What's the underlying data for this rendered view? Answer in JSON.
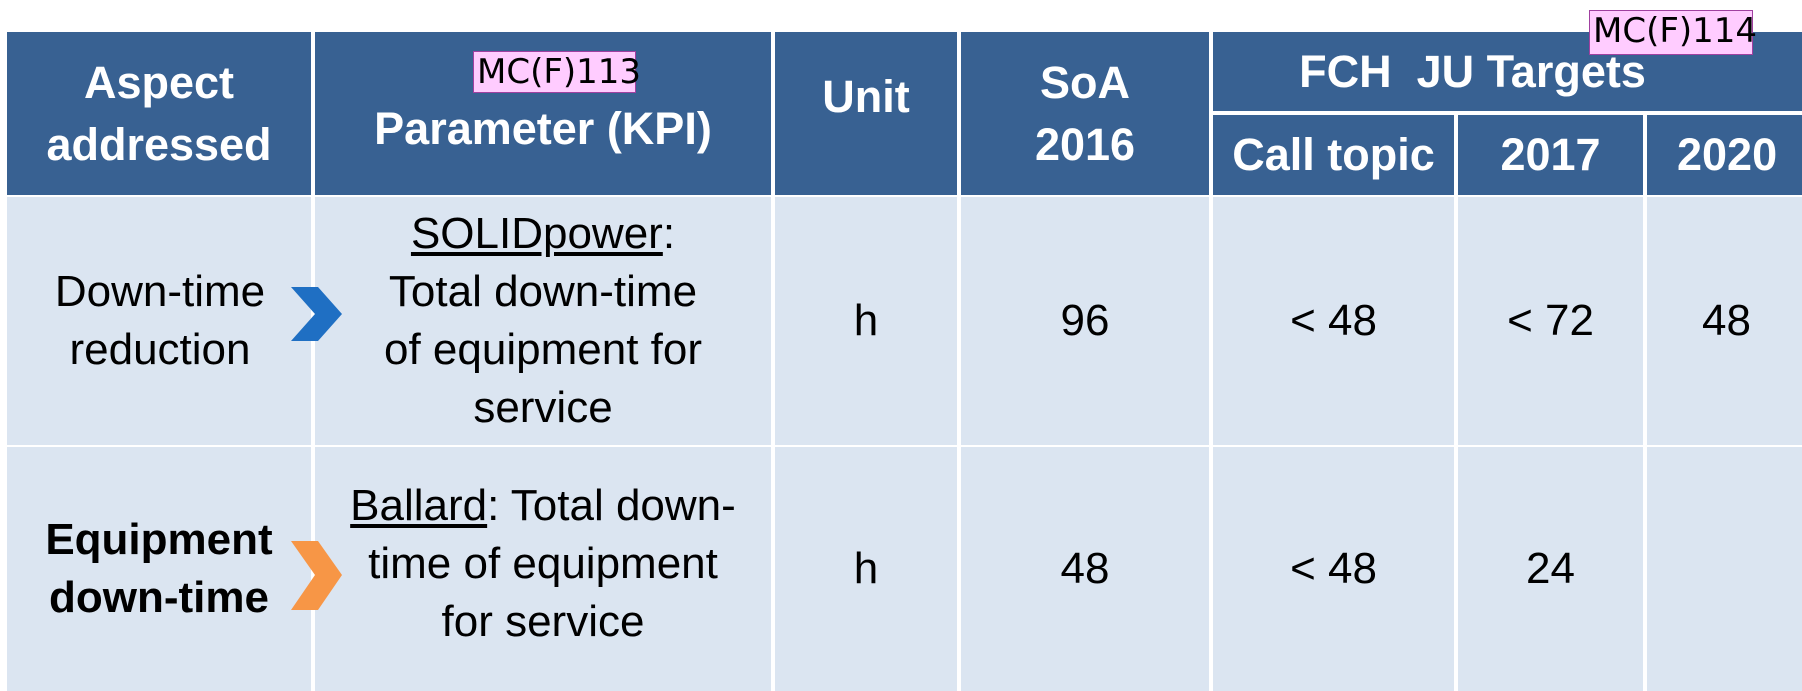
{
  "header": {
    "aspect": "Aspect addressed",
    "parameter": "Parameter (KPI)",
    "unit": "Unit",
    "soa": "SoA 2016",
    "targets": "FCH  JU Targets",
    "call_topic": "Call topic",
    "y2017": "2017",
    "y2020": "2020"
  },
  "rows": [
    {
      "aspect": "Down-time reduction",
      "company": "SOLIDpower",
      "parameter": ": Total down-time of equipment for service",
      "unit": "h",
      "soa": 96,
      "call_topic": "< 48",
      "t2017": "< 72",
      "t2020": 48
    },
    {
      "aspect": "Equipment down-time",
      "company": "Ballard",
      "parameter": ": Total down-time of equipment for service",
      "unit": "h",
      "soa": 48,
      "call_topic": "< 48",
      "t2017": 24
    }
  ],
  "annotations": [
    "MC(F)113",
    "MC(F)114"
  ]
}
